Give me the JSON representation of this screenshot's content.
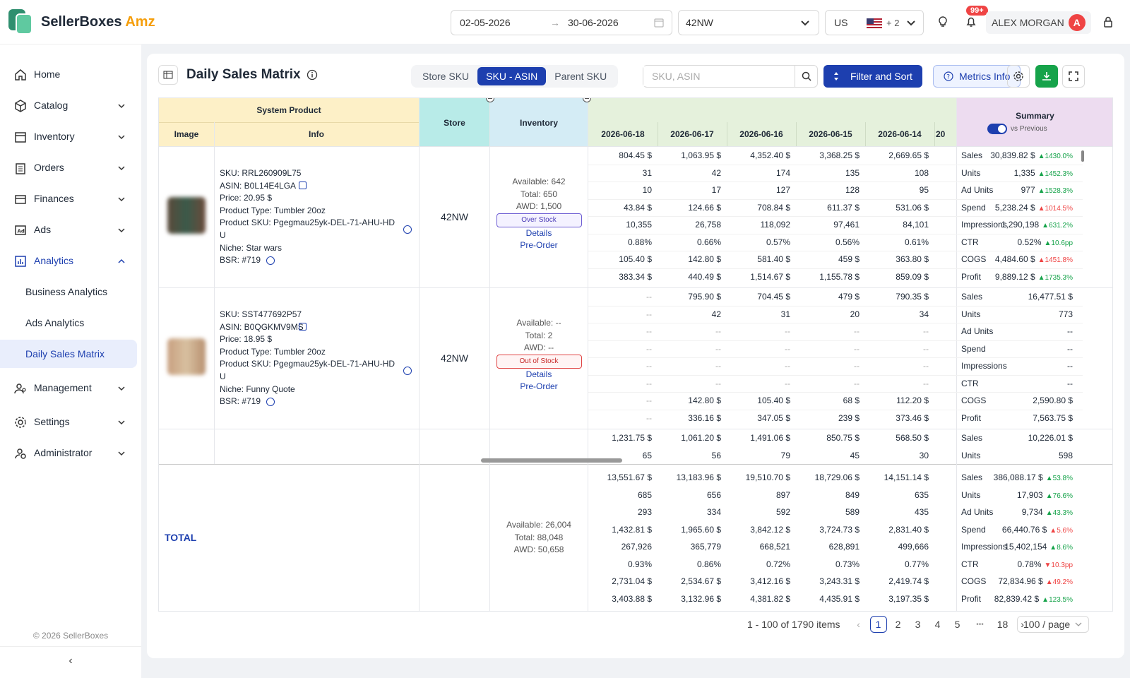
{
  "app": {
    "brand_a": "SellerBoxes",
    "brand_b": "Amz"
  },
  "header": {
    "date_from": "02-05-2026",
    "date_to": "30-06-2026",
    "date_arrow": "→",
    "store": "42NW",
    "country": "US",
    "country_extra": "+ 2",
    "notif_badge": "99+",
    "user_name": "ALEX MORGAN",
    "user_initial": "A"
  },
  "sidebar": {
    "items": [
      {
        "label": "Home"
      },
      {
        "label": "Catalog"
      },
      {
        "label": "Inventory"
      },
      {
        "label": "Orders"
      },
      {
        "label": "Finances"
      },
      {
        "label": "Ads"
      },
      {
        "label": "Analytics"
      }
    ],
    "sub": [
      {
        "label": "Business Analytics"
      },
      {
        "label": "Ads Analytics"
      },
      {
        "label": "Daily Sales Matrix"
      }
    ],
    "items2": [
      {
        "label": "Management"
      },
      {
        "label": "Settings"
      },
      {
        "label": "Administrator"
      }
    ],
    "copyright": "© 2026 SellerBoxes"
  },
  "page": {
    "title": "Daily Sales Matrix",
    "tabs": [
      "Store SKU",
      "SKU - ASIN",
      "Parent SKU"
    ],
    "search_placeholder": "SKU, ASIN",
    "filter_label": "Filter and Sort",
    "metrics_label": "Metrics Info"
  },
  "table": {
    "h_system": "System Product",
    "h_image": "Image",
    "h_info": "Info",
    "h_store": "Store",
    "h_inventory": "Inventory",
    "dates": [
      "2026-06-18",
      "2026-06-17",
      "2026-06-16",
      "2026-06-15",
      "2026-06-14",
      "20"
    ],
    "h_summary": "Summary",
    "vs_previous": "vs Previous",
    "products": [
      {
        "sku": "SKU: RRL260909L75",
        "asin": "ASIN: B0L14E4LGA",
        "price": "Price: 20.95 $",
        "type": "Product Type: Tumbler 20oz",
        "psku": "Product SKU: Pgegmau25yk-DEL-71-AHU-HD",
        "psku2": "U",
        "niche": "Niche: Star wars",
        "bsr": "BSR:  #719",
        "store": "42NW",
        "available": "Available: 642",
        "total": "Total: 650",
        "awd": "AWD: 1,500",
        "stock": "Over Stock",
        "details": "Details",
        "preorder": "Pre-Order",
        "cols": [
          [
            "804.45 $",
            "31",
            "10",
            "43.84 $",
            "10,355",
            "0.88%",
            "105.40 $",
            "383.34 $"
          ],
          [
            "1,063.95 $",
            "42",
            "17",
            "124.66 $",
            "26,758",
            "0.66%",
            "142.80 $",
            "440.49 $"
          ],
          [
            "4,352.40 $",
            "174",
            "127",
            "708.84 $",
            "118,092",
            "0.57%",
            "581.40 $",
            "1,514.67 $"
          ],
          [
            "3,368.25 $",
            "135",
            "128",
            "611.37 $",
            "97,461",
            "0.56%",
            "459 $",
            "1,155.78 $"
          ],
          [
            "2,669.65 $",
            "108",
            "95",
            "531.06 $",
            "84,101",
            "0.61%",
            "363.80 $",
            "859.09 $"
          ]
        ],
        "summary": [
          {
            "l": "Sales",
            "v": "30,839.82 $",
            "c": "▲1430.0%",
            "d": "up"
          },
          {
            "l": "Units",
            "v": "1,335",
            "c": "▲1452.3%",
            "d": "up"
          },
          {
            "l": "Ad Units",
            "v": "977",
            "c": "▲1528.3%",
            "d": "up"
          },
          {
            "l": "Spend",
            "v": "5,238.24 $",
            "c": "▲1014.5%",
            "d": "down"
          },
          {
            "l": "Impressions",
            "v": "1,290,198",
            "c": "▲631.2%",
            "d": "up"
          },
          {
            "l": "CTR",
            "v": "0.52%",
            "c": "▲10.6pp",
            "d": "up"
          },
          {
            "l": "COGS",
            "v": "4,484.60 $",
            "c": "▲1451.8%",
            "d": "down"
          },
          {
            "l": "Profit",
            "v": "9,889.12 $",
            "c": "▲1735.3%",
            "d": "up"
          }
        ]
      },
      {
        "sku": "SKU: SST477692P57",
        "asin": "ASIN: B0QGKMV9MS",
        "price": "Price: 18.95 $",
        "type": "Product Type: Tumbler 20oz",
        "psku": "Product SKU: Pgegmau25yk-DEL-71-AHU-HD",
        "psku2": "U",
        "niche": "Niche: Funny Quote",
        "bsr": "BSR:  #719",
        "store": "42NW",
        "available": "Available: --",
        "total": "Total: 2",
        "awd": "AWD: --",
        "stock": "Out of Stock",
        "details": "Details",
        "preorder": "Pre-Order",
        "cols": [
          [
            "--",
            "--",
            "--",
            "--",
            "--",
            "--",
            "--",
            "--"
          ],
          [
            "795.90 $",
            "42",
            "--",
            "--",
            "--",
            "--",
            "142.80 $",
            "336.16 $"
          ],
          [
            "704.45 $",
            "31",
            "--",
            "--",
            "--",
            "--",
            "105.40 $",
            "347.05 $"
          ],
          [
            "479 $",
            "20",
            "--",
            "--",
            "--",
            "--",
            "68 $",
            "239 $"
          ],
          [
            "790.35 $",
            "34",
            "--",
            "--",
            "--",
            "--",
            "112.20 $",
            "373.46 $"
          ]
        ],
        "summary": [
          {
            "l": "Sales",
            "v": "16,477.51 $",
            "c": "",
            "d": ""
          },
          {
            "l": "Units",
            "v": "773",
            "c": "",
            "d": ""
          },
          {
            "l": "Ad Units",
            "v": "--",
            "c": "",
            "d": ""
          },
          {
            "l": "Spend",
            "v": "--",
            "c": "",
            "d": ""
          },
          {
            "l": "Impressions",
            "v": "--",
            "c": "",
            "d": ""
          },
          {
            "l": "CTR",
            "v": "--",
            "c": "",
            "d": ""
          },
          {
            "l": "COGS",
            "v": "2,590.80 $",
            "c": "",
            "d": ""
          },
          {
            "l": "Profit",
            "v": "7,563.75 $",
            "c": "",
            "d": ""
          }
        ]
      }
    ],
    "partial": {
      "cols": [
        [
          "1,231.75 $",
          "65"
        ],
        [
          "1,061.20 $",
          "56"
        ],
        [
          "1,491.06 $",
          "79"
        ],
        [
          "850.75 $",
          "45"
        ],
        [
          "568.50 $",
          "30"
        ]
      ],
      "summary": [
        {
          "l": "Sales",
          "v": "10,226.01 $"
        },
        {
          "l": "Units",
          "v": "598"
        }
      ]
    },
    "total": {
      "label": "TOTAL",
      "available": "Available: 26,004",
      "total": "Total: 88,048",
      "awd": "AWD: 50,658",
      "cols": [
        [
          "13,551.67 $",
          "685",
          "293",
          "1,432.81 $",
          "267,926",
          "0.93%",
          "2,731.04 $",
          "3,403.88 $"
        ],
        [
          "13,183.96 $",
          "656",
          "334",
          "1,965.60 $",
          "365,779",
          "0.86%",
          "2,534.67 $",
          "3,132.96 $"
        ],
        [
          "19,510.70 $",
          "897",
          "592",
          "3,842.12 $",
          "668,521",
          "0.72%",
          "3,412.16 $",
          "4,381.82 $"
        ],
        [
          "18,729.06 $",
          "849",
          "589",
          "3,724.73 $",
          "628,891",
          "0.73%",
          "3,243.31 $",
          "4,435.91 $"
        ],
        [
          "14,151.14 $",
          "635",
          "435",
          "2,831.40 $",
          "499,666",
          "0.77%",
          "2,419.74 $",
          "3,197.35 $"
        ]
      ],
      "summary": [
        {
          "l": "Sales",
          "v": "386,088.17 $",
          "c": "▲53.8%",
          "d": "up"
        },
        {
          "l": "Units",
          "v": "17,903",
          "c": "▲76.6%",
          "d": "up"
        },
        {
          "l": "Ad Units",
          "v": "9,734",
          "c": "▲43.3%",
          "d": "up"
        },
        {
          "l": "Spend",
          "v": "66,440.76 $",
          "c": "▲5.6%",
          "d": "down"
        },
        {
          "l": "Impressions",
          "v": "15,402,154",
          "c": "▲8.6%",
          "d": "up"
        },
        {
          "l": "CTR",
          "v": "0.78%",
          "c": "▼10.3pp",
          "d": "down"
        },
        {
          "l": "COGS",
          "v": "72,834.96 $",
          "c": "▲49.2%",
          "d": "down"
        },
        {
          "l": "Profit",
          "v": "82,839.42 $",
          "c": "▲123.5%",
          "d": "up"
        }
      ]
    }
  },
  "pagination": {
    "range": "1 - 100 of 1790 items",
    "pages": [
      "1",
      "2",
      "3",
      "4",
      "5",
      "18"
    ],
    "ellipsis": "•••",
    "per_page": "100 / page"
  }
}
